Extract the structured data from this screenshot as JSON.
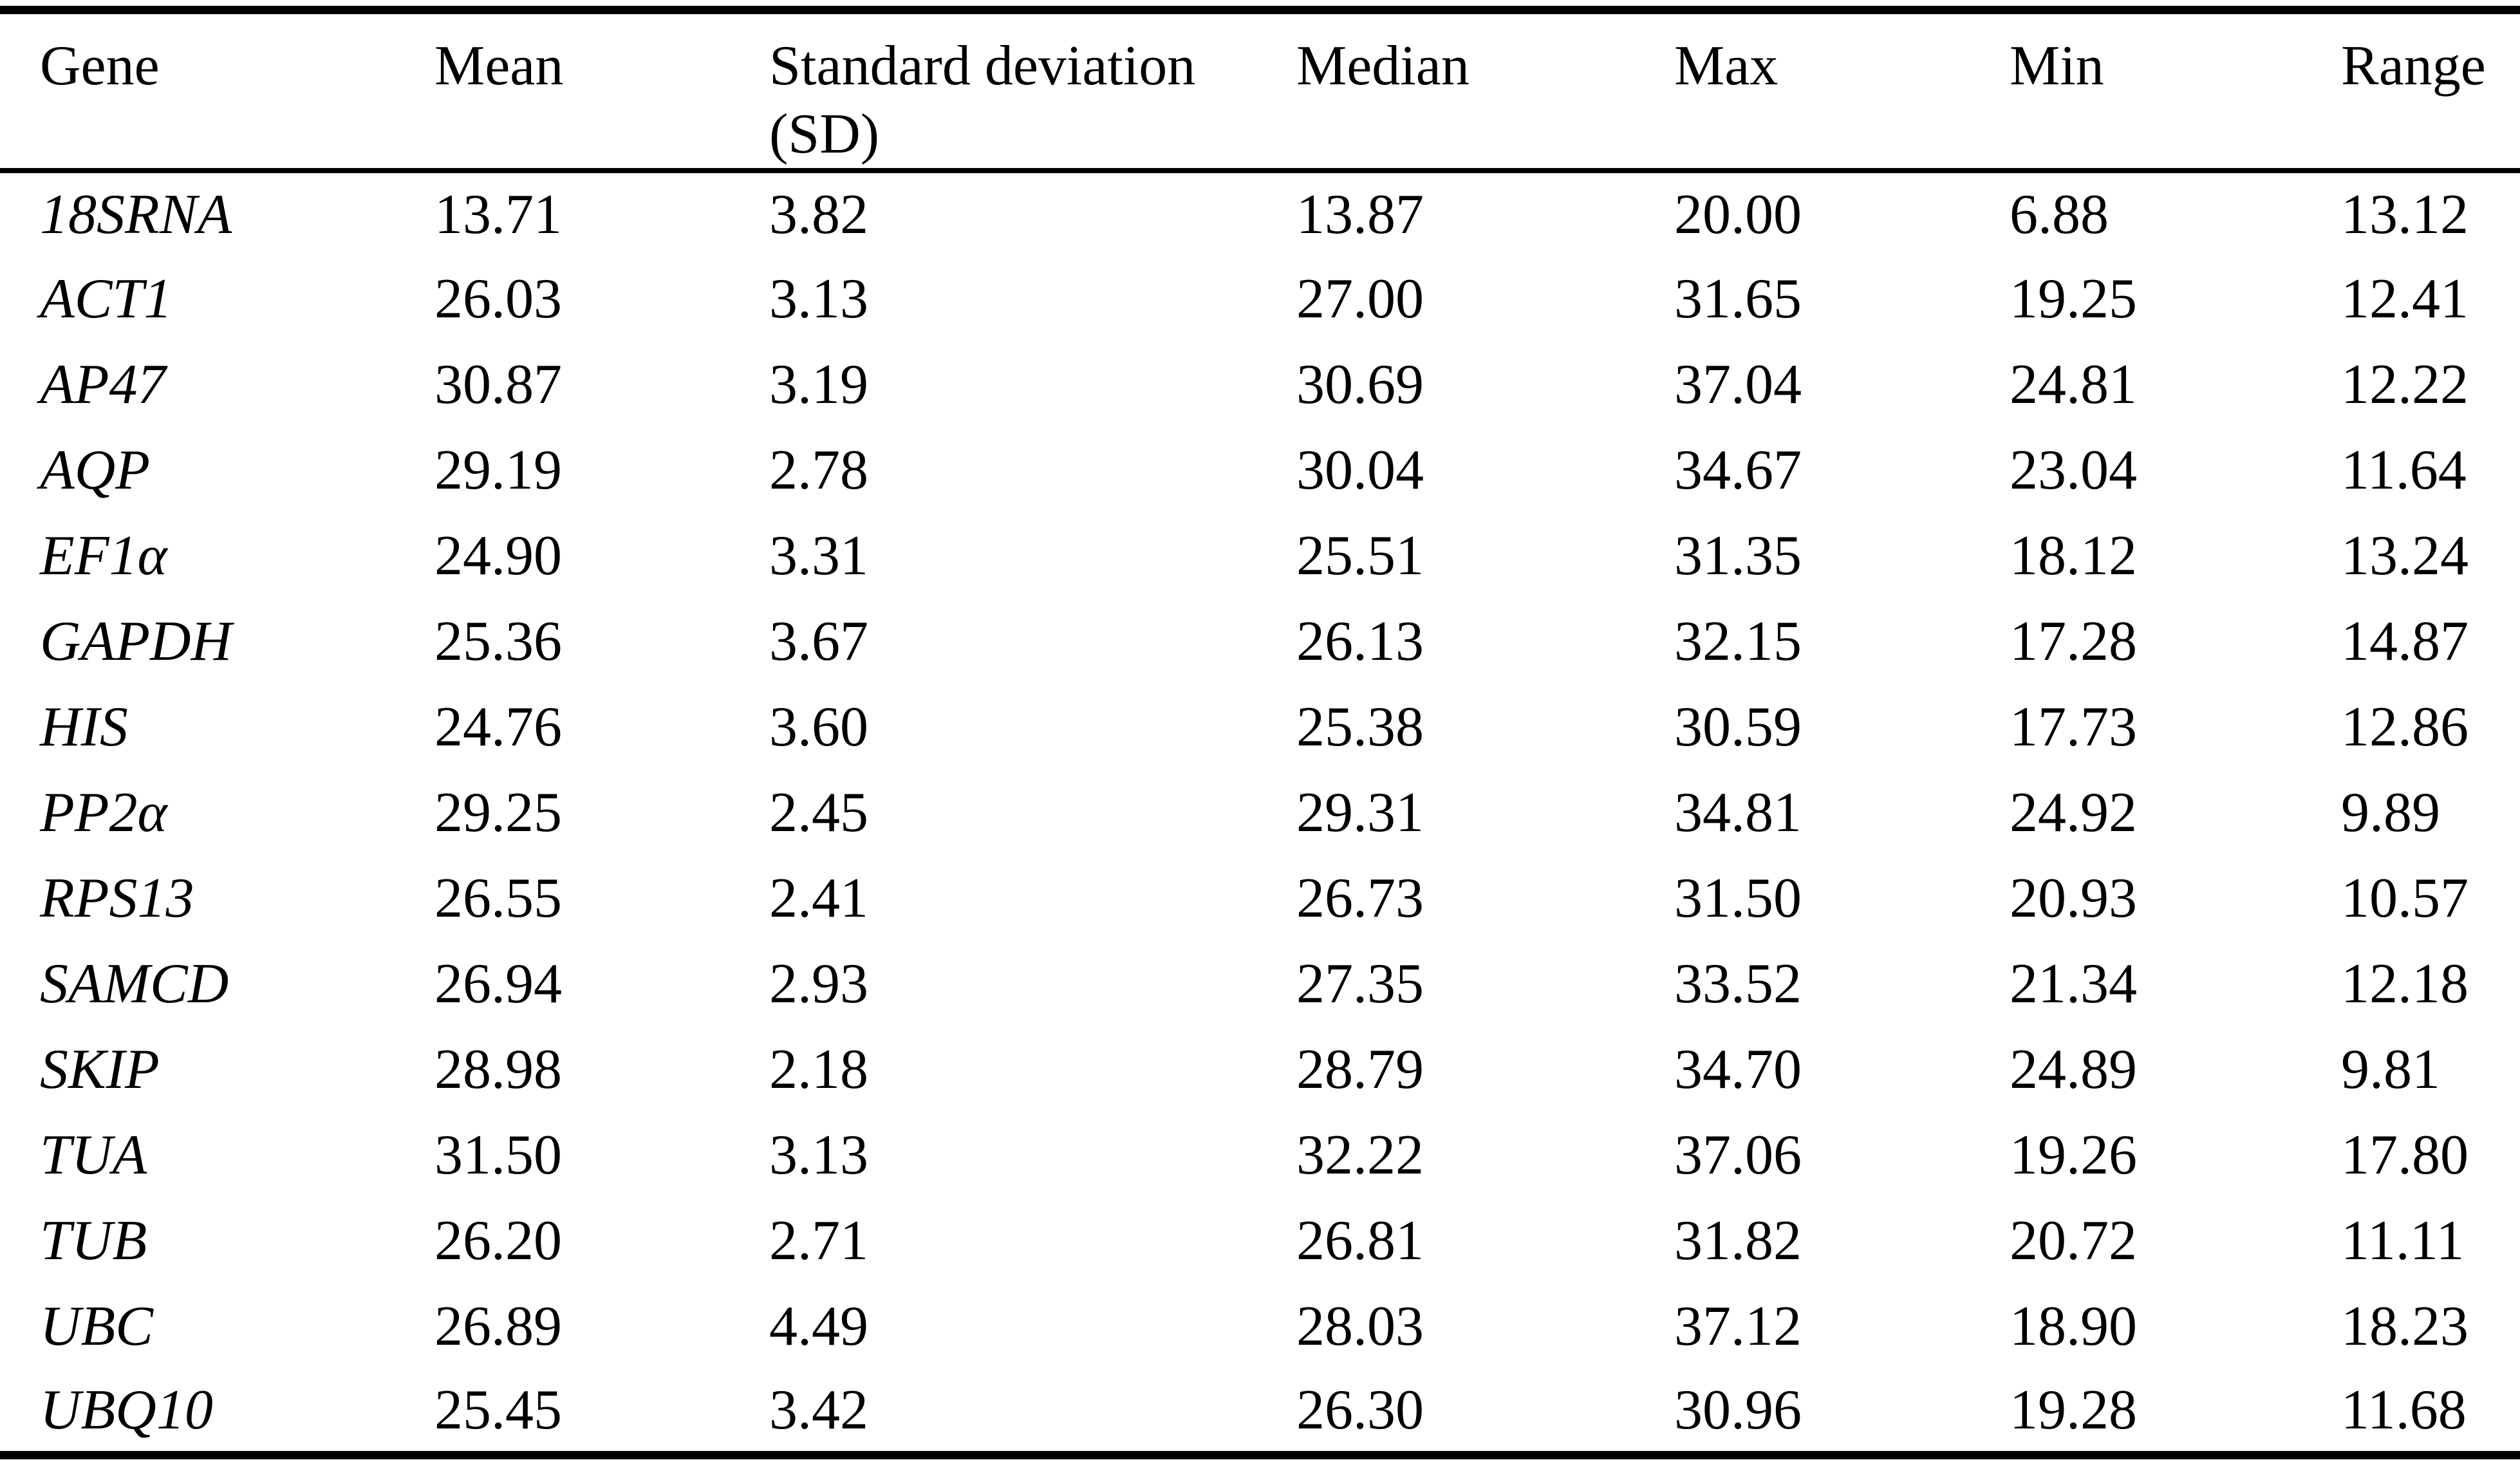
{
  "colors": {
    "background": "#ffffff",
    "text": "#000000",
    "rule": "#000000"
  },
  "table": {
    "columns": [
      "Gene",
      "Mean",
      "Standard deviation (SD)",
      "Median",
      "Max",
      "Min",
      "Range"
    ],
    "rows": [
      [
        "18SRNA",
        "13.71",
        "3.82",
        "13.87",
        "20.00",
        "6.88",
        "13.12"
      ],
      [
        "ACT1",
        "26.03",
        "3.13",
        "27.00",
        "31.65",
        "19.25",
        "12.41"
      ],
      [
        "AP47",
        "30.87",
        "3.19",
        "30.69",
        "37.04",
        "24.81",
        "12.22"
      ],
      [
        "AQP",
        "29.19",
        "2.78",
        "30.04",
        "34.67",
        "23.04",
        "11.64"
      ],
      [
        "EF1α",
        "24.90",
        "3.31",
        "25.51",
        "31.35",
        "18.12",
        "13.24"
      ],
      [
        "GAPDH",
        "25.36",
        "3.67",
        "26.13",
        "32.15",
        "17.28",
        "14.87"
      ],
      [
        "HIS",
        "24.76",
        "3.60",
        "25.38",
        "30.59",
        "17.73",
        "12.86"
      ],
      [
        "PP2α",
        "29.25",
        "2.45",
        "29.31",
        "34.81",
        "24.92",
        "9.89"
      ],
      [
        "RPS13",
        "26.55",
        "2.41",
        "26.73",
        "31.50",
        "20.93",
        "10.57"
      ],
      [
        "SAMCD",
        "26.94",
        "2.93",
        "27.35",
        "33.52",
        "21.34",
        "12.18"
      ],
      [
        "SKIP",
        "28.98",
        "2.18",
        "28.79",
        "34.70",
        "24.89",
        "9.81"
      ],
      [
        "TUA",
        "31.50",
        "3.13",
        "32.22",
        "37.06",
        "19.26",
        "17.80"
      ],
      [
        "TUB",
        "26.20",
        "2.71",
        "26.81",
        "31.82",
        "20.72",
        "11.11"
      ],
      [
        "UBC",
        "26.89",
        "4.49",
        "28.03",
        "37.12",
        "18.90",
        "18.23"
      ],
      [
        "UBQ10",
        "25.45",
        "3.42",
        "26.30",
        "30.96",
        "19.28",
        "11.68"
      ]
    ]
  }
}
